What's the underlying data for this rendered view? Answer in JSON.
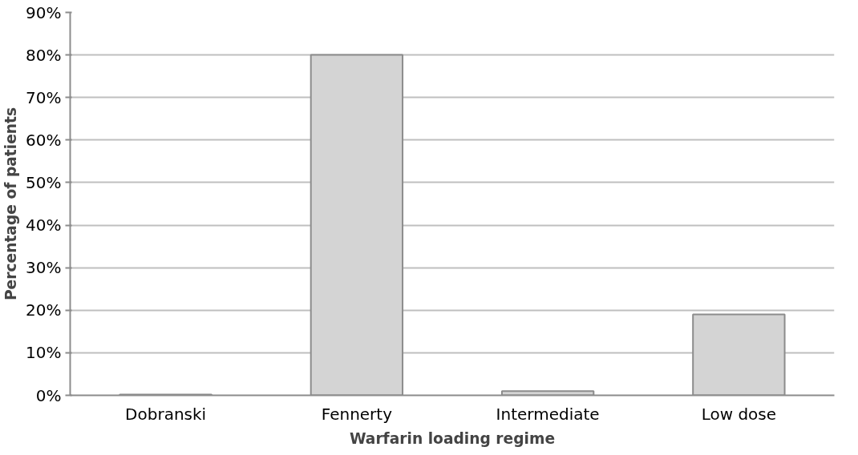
{
  "chart_data": {
    "type": "bar",
    "xlabel": "Warfarin loading regime",
    "ylabel": "Percentage of patients",
    "categories": [
      "Dobranski",
      "Fennerty",
      "Intermediate",
      "Low dose"
    ],
    "values": [
      0.2,
      80,
      1,
      19
    ],
    "color": "#d4d4d4",
    "ylim": [
      0,
      90
    ],
    "yticks": [
      {
        "value": 0,
        "label": "0%"
      },
      {
        "value": 10,
        "label": "10%"
      },
      {
        "value": 20,
        "label": "20%"
      },
      {
        "value": 30,
        "label": "30%"
      },
      {
        "value": 40,
        "label": "40%"
      },
      {
        "value": 50,
        "label": "50%"
      },
      {
        "value": 60,
        "label": "60%"
      },
      {
        "value": 70,
        "label": "70%"
      },
      {
        "value": 80,
        "label": "80%"
      },
      {
        "value": 90,
        "label": "90%"
      }
    ],
    "grid": "y"
  }
}
